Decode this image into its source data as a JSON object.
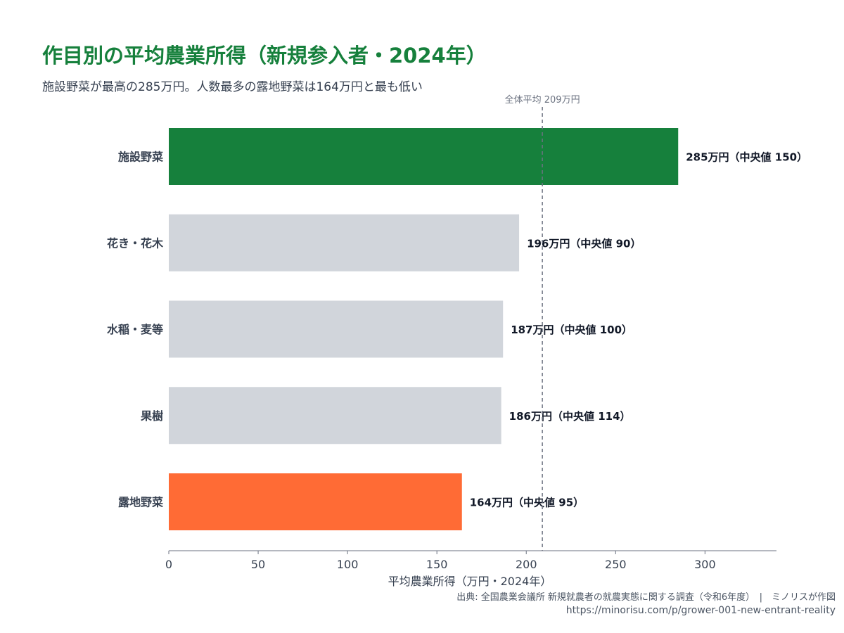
{
  "title": "作目別の平均農業所得（新規参入者・2024年）",
  "subtitle": "施設野菜が最高の285万円。人数最多の露地野菜は164万円と最も低い",
  "source": "出典: 全国農業会議所 新規就農者の就農実態に関する調査（令和6年度）　|　ミノリスが作図",
  "url": "https://minorisu.com/p/grower-001-new-entrant-reality",
  "colors": {
    "highlight_high": "#16803c",
    "highlight_low": "#ff6b35",
    "default_bar": "#d1d5db",
    "reference_line": "#6b7280"
  },
  "chart_data": {
    "type": "bar",
    "orientation": "horizontal",
    "categories": [
      "施設野菜",
      "花き・花木",
      "水稲・麦等",
      "果樹",
      "露地野菜"
    ],
    "values": [
      285,
      196,
      187,
      186,
      164
    ],
    "medians": [
      150,
      90,
      100,
      114,
      95
    ],
    "data_labels": [
      "285万円（中央値 150）",
      "196万円（中央値 90）",
      "187万円（中央値 100）",
      "186万円（中央値 114）",
      "164万円（中央値 95）"
    ],
    "bar_colors": [
      "#16803c",
      "#d1d5db",
      "#d1d5db",
      "#d1d5db",
      "#ff6b35"
    ],
    "xlabel": "平均農業所得（万円・2024年）",
    "xlim": [
      0,
      340
    ],
    "xticks": [
      0,
      50,
      100,
      150,
      200,
      250,
      300
    ],
    "reference_line": {
      "value": 209,
      "label": "全体平均 209万円"
    },
    "grid": false
  }
}
